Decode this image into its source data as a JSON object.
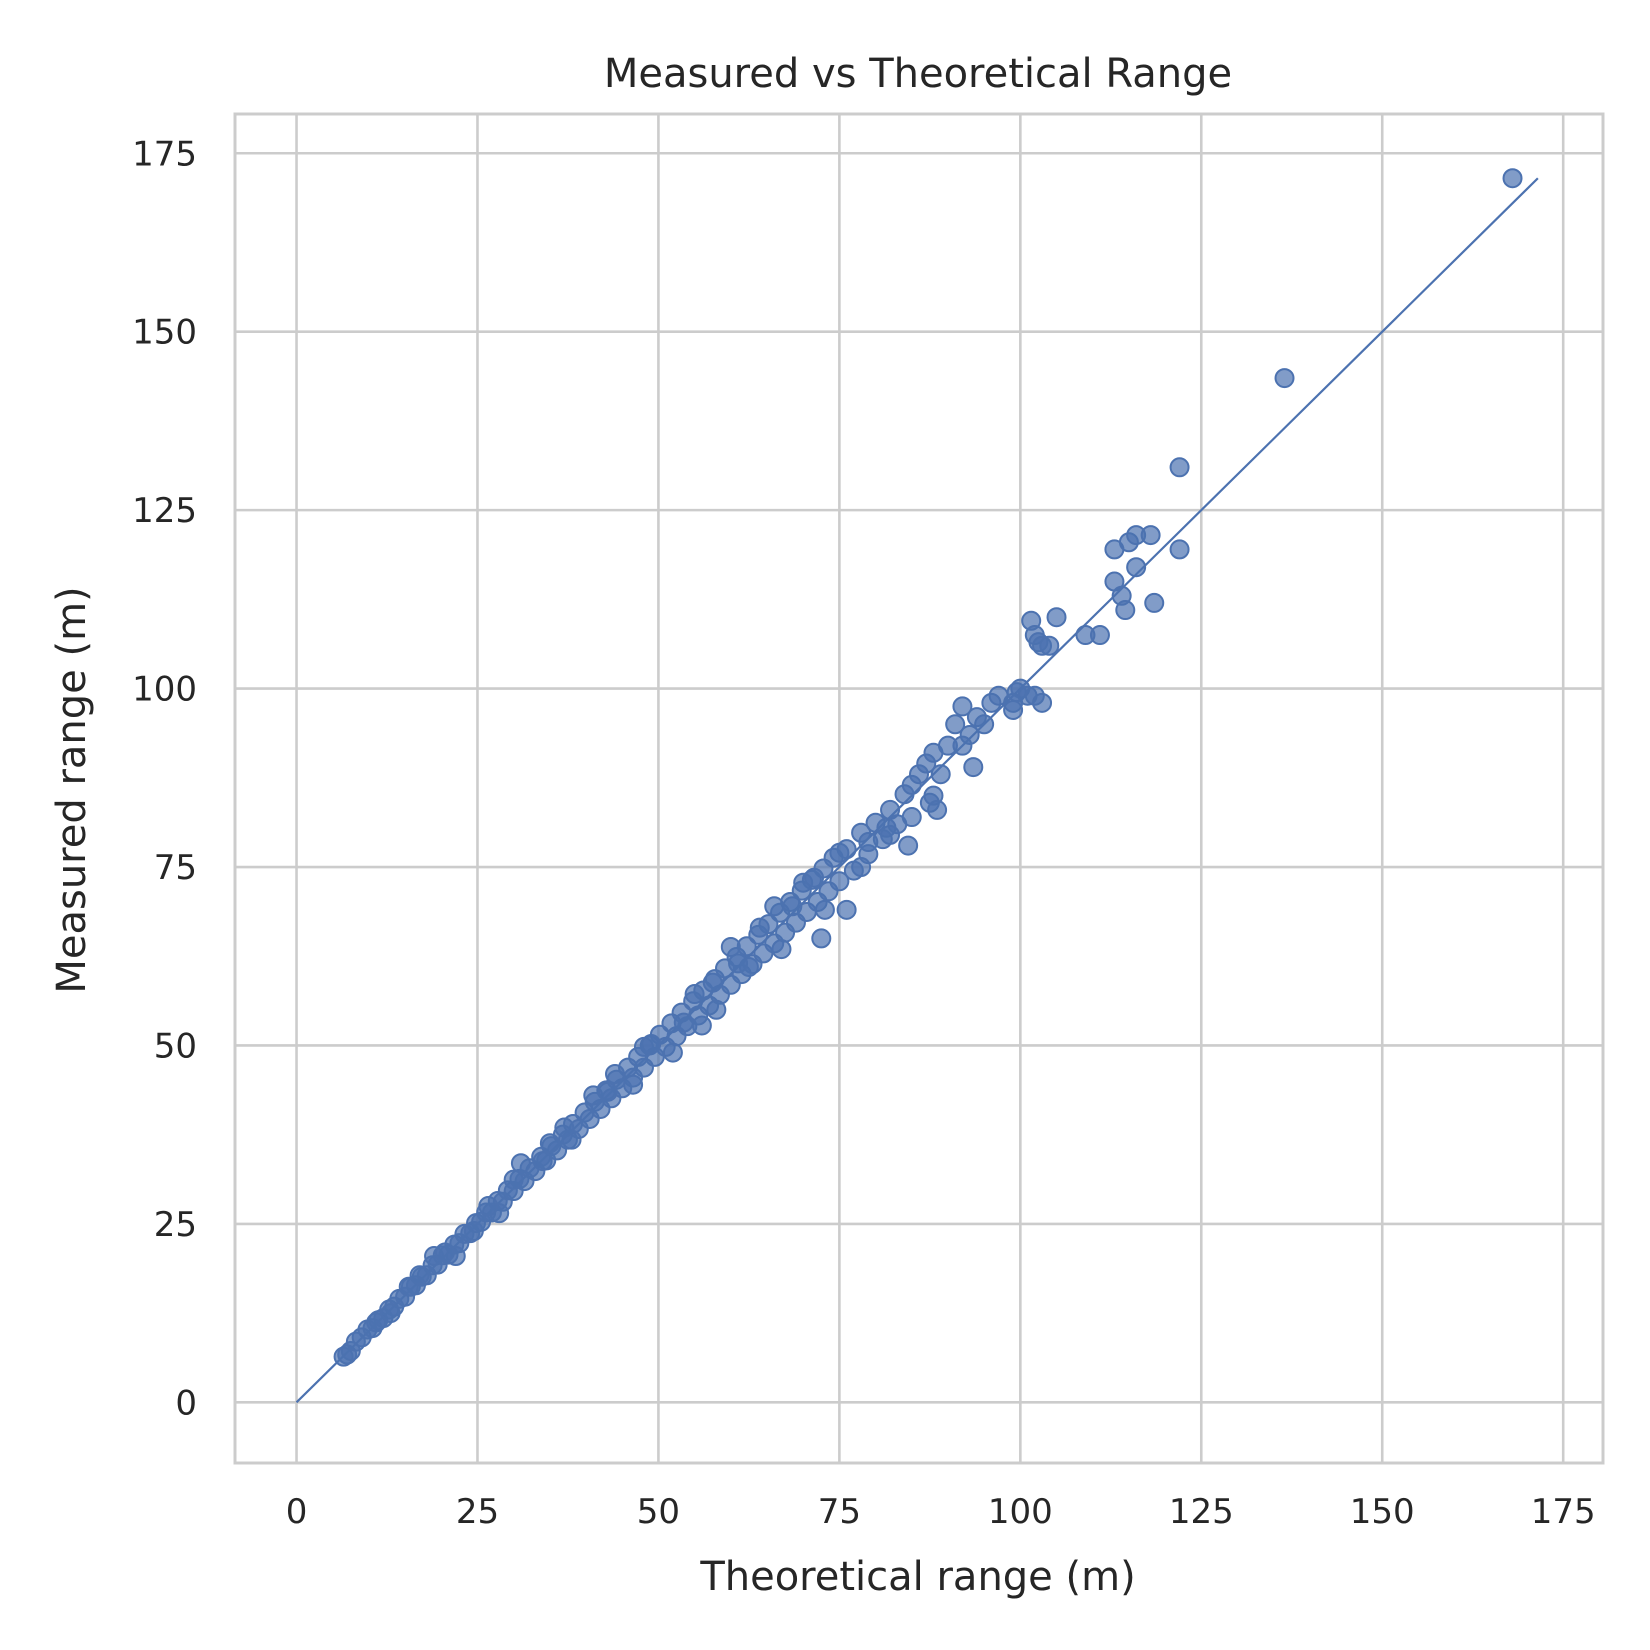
{
  "chart_data": {
    "type": "scatter",
    "title": "Measured vs Theoretical Range",
    "xlabel": "Theoretical range (m)",
    "ylabel": "Measured range (m)",
    "xlim": [
      -8.5,
      180.5
    ],
    "ylim": [
      -8.5,
      180.5
    ],
    "x_ticks": [
      0,
      25,
      50,
      75,
      100,
      125,
      150,
      175
    ],
    "y_ticks": [
      0,
      25,
      50,
      75,
      100,
      125,
      150,
      175
    ],
    "x_tick_labels": [
      "0",
      "25",
      "50",
      "75",
      "100",
      "125",
      "150",
      "175"
    ],
    "y_tick_labels": [
      "0",
      "25",
      "50",
      "75",
      "100",
      "125",
      "150",
      "175"
    ],
    "grid": true,
    "legend": "none",
    "colors": {
      "points": "#4c72b0",
      "line": "#4c72b0",
      "grid": "#cccccc",
      "spine": "#cccccc"
    },
    "reference_line": {
      "type": "identity",
      "from": [
        0,
        0
      ],
      "to": [
        171.5,
        171.5
      ]
    },
    "series": [
      {
        "values_xy": [
          [
            6.5,
            6.4
          ],
          [
            7.0,
            6.7
          ],
          [
            7.5,
            7.2
          ],
          [
            8.2,
            8.5
          ],
          [
            9.0,
            9.1
          ],
          [
            9.8,
            10.2
          ],
          [
            10.5,
            10.4
          ],
          [
            11.3,
            11.5
          ],
          [
            12.0,
            11.8
          ],
          [
            12.8,
            13.0
          ],
          [
            13.5,
            13.4
          ],
          [
            14.2,
            14.5
          ],
          [
            15.0,
            14.8
          ],
          [
            15.8,
            16.2
          ],
          [
            16.5,
            16.4
          ],
          [
            17.3,
            17.6
          ],
          [
            18.0,
            17.8
          ],
          [
            18.8,
            19.2
          ],
          [
            19.5,
            19.3
          ],
          [
            20.2,
            20.6
          ],
          [
            21.0,
            20.7
          ],
          [
            21.8,
            22.1
          ],
          [
            22.5,
            22.3
          ],
          [
            23.2,
            23.6
          ],
          [
            24.0,
            23.7
          ],
          [
            24.8,
            25.1
          ],
          [
            25.5,
            25.3
          ],
          [
            26.2,
            26.6
          ],
          [
            27.0,
            26.6
          ],
          [
            27.8,
            28.2
          ],
          [
            28.5,
            28.1
          ],
          [
            29.2,
            29.7
          ],
          [
            30.0,
            29.6
          ],
          [
            30.8,
            31.3
          ],
          [
            31.5,
            31.0
          ],
          [
            32.2,
            32.8
          ],
          [
            33.0,
            32.4
          ],
          [
            33.8,
            34.4
          ],
          [
            34.5,
            33.9
          ],
          [
            35.2,
            35.9
          ],
          [
            36.0,
            35.3
          ],
          [
            36.8,
            37.5
          ],
          [
            37.5,
            36.8
          ],
          [
            38.2,
            39.0
          ],
          [
            39.0,
            38.3
          ],
          [
            39.8,
            40.6
          ],
          [
            40.5,
            39.7
          ],
          [
            41.2,
            42.1
          ],
          [
            42.0,
            41.1
          ],
          [
            42.8,
            43.7
          ],
          [
            43.5,
            42.6
          ],
          [
            44.2,
            45.2
          ],
          [
            45.0,
            44.0
          ],
          [
            45.8,
            46.9
          ],
          [
            46.5,
            45.5
          ],
          [
            47.2,
            48.4
          ],
          [
            48.0,
            46.9
          ],
          [
            48.8,
            50.0
          ],
          [
            49.5,
            48.4
          ],
          [
            50.2,
            51.5
          ],
          [
            51.0,
            49.8
          ],
          [
            51.8,
            53.1
          ],
          [
            52.5,
            51.3
          ],
          [
            53.2,
            54.6
          ],
          [
            54.0,
            52.7
          ],
          [
            54.8,
            56.2
          ],
          [
            55.5,
            54.2
          ],
          [
            56.2,
            57.7
          ],
          [
            57.0,
            55.6
          ],
          [
            57.8,
            59.3
          ],
          [
            58.5,
            57.1
          ],
          [
            59.2,
            60.8
          ],
          [
            60.0,
            58.5
          ],
          [
            60.8,
            62.4
          ],
          [
            61.5,
            60.0
          ],
          [
            62.2,
            63.9
          ],
          [
            63.0,
            61.4
          ],
          [
            63.8,
            65.5
          ],
          [
            64.5,
            62.9
          ],
          [
            65.2,
            67.0
          ],
          [
            66.0,
            64.3
          ],
          [
            66.8,
            68.6
          ],
          [
            67.5,
            65.8
          ],
          [
            68.2,
            70.1
          ],
          [
            69.0,
            67.2
          ],
          [
            69.8,
            71.7
          ],
          [
            70.5,
            68.7
          ],
          [
            71.2,
            73.2
          ],
          [
            72.0,
            70.1
          ],
          [
            72.8,
            74.8
          ],
          [
            73.5,
            71.6
          ],
          [
            74.2,
            76.3
          ],
          [
            75.0,
            73.0
          ],
          [
            76.0,
            77.5
          ],
          [
            77.0,
            74.5
          ],
          [
            78.0,
            79.8
          ],
          [
            79.0,
            76.8
          ],
          [
            80.0,
            81.2
          ],
          [
            81.0,
            78.9
          ],
          [
            82.0,
            83.0
          ],
          [
            83.0,
            81.0
          ],
          [
            84.0,
            85.2
          ],
          [
            55.0,
            57.2
          ],
          [
            48.0,
            49.8
          ],
          [
            62.5,
            61.0
          ],
          [
            66.0,
            69.5
          ],
          [
            70.0,
            72.8
          ],
          [
            58.0,
            55.0
          ],
          [
            44.0,
            46.0
          ],
          [
            38.0,
            36.8
          ],
          [
            35.0,
            36.3
          ],
          [
            41.0,
            43.0
          ],
          [
            52.0,
            49.0
          ],
          [
            60.0,
            63.8
          ],
          [
            67.0,
            63.5
          ],
          [
            73.0,
            69.0
          ],
          [
            75.0,
            77.0
          ],
          [
            78.0,
            75.0
          ],
          [
            64.0,
            66.5
          ],
          [
            56.0,
            52.8
          ],
          [
            46.5,
            44.5
          ],
          [
            31.0,
            33.5
          ],
          [
            28.0,
            26.5
          ],
          [
            22.0,
            20.5
          ],
          [
            19.0,
            20.5
          ],
          [
            15.5,
            16.2
          ],
          [
            68.5,
            69.5
          ],
          [
            71.5,
            73.5
          ],
          [
            57.5,
            58.8
          ],
          [
            61.0,
            61.5
          ],
          [
            53.5,
            53.2
          ],
          [
            49.0,
            50.2
          ],
          [
            43.0,
            43.5
          ],
          [
            37.0,
            38.5
          ],
          [
            34.0,
            33.8
          ],
          [
            30.0,
            31.2
          ],
          [
            26.5,
            27.5
          ],
          [
            24.5,
            24.0
          ],
          [
            20.5,
            21.0
          ],
          [
            17.0,
            17.8
          ],
          [
            13.0,
            12.5
          ],
          [
            11.0,
            11.2
          ],
          [
            79.0,
            78.5
          ],
          [
            81.5,
            80.5
          ],
          [
            85.0,
            86.5
          ],
          [
            86.0,
            88.0
          ],
          [
            87.0,
            89.5
          ],
          [
            88.0,
            91.0
          ],
          [
            89.0,
            88.0
          ],
          [
            90.0,
            92.0
          ],
          [
            91.0,
            95.0
          ],
          [
            92.0,
            97.5
          ],
          [
            93.0,
            93.5
          ],
          [
            93.5,
            89.0
          ],
          [
            87.5,
            84.0
          ],
          [
            88.0,
            85.0
          ],
          [
            88.5,
            83.0
          ],
          [
            85.0,
            82.0
          ],
          [
            84.5,
            78.0
          ],
          [
            82.0,
            79.5
          ],
          [
            76.0,
            69.0
          ],
          [
            72.5,
            65.0
          ],
          [
            92.0,
            92.0
          ],
          [
            94.0,
            96.0
          ],
          [
            96.0,
            98.0
          ],
          [
            97.0,
            99.0
          ],
          [
            99.0,
            98.0
          ],
          [
            99.5,
            99.5
          ],
          [
            100.0,
            100.0
          ],
          [
            101.0,
            99.0
          ],
          [
            102.0,
            99.0
          ],
          [
            99.0,
            97.0
          ],
          [
            103.0,
            98.0
          ],
          [
            95.0,
            95.0
          ],
          [
            101.5,
            109.5
          ],
          [
            102.0,
            107.5
          ],
          [
            102.5,
            106.5
          ],
          [
            103.0,
            106.0
          ],
          [
            104.0,
            106.0
          ],
          [
            105.0,
            110.0
          ],
          [
            109.0,
            107.5
          ],
          [
            111.0,
            107.5
          ],
          [
            113.0,
            119.5
          ],
          [
            113.0,
            115.0
          ],
          [
            114.0,
            113.0
          ],
          [
            114.5,
            111.0
          ],
          [
            115.0,
            120.5
          ],
          [
            116.0,
            121.5
          ],
          [
            116.0,
            117.0
          ],
          [
            118.0,
            121.5
          ],
          [
            118.5,
            112.0
          ],
          [
            122.0,
            119.5
          ],
          [
            122.0,
            131.0
          ],
          [
            136.5,
            143.5
          ],
          [
            168.0,
            171.5
          ]
        ]
      }
    ]
  }
}
